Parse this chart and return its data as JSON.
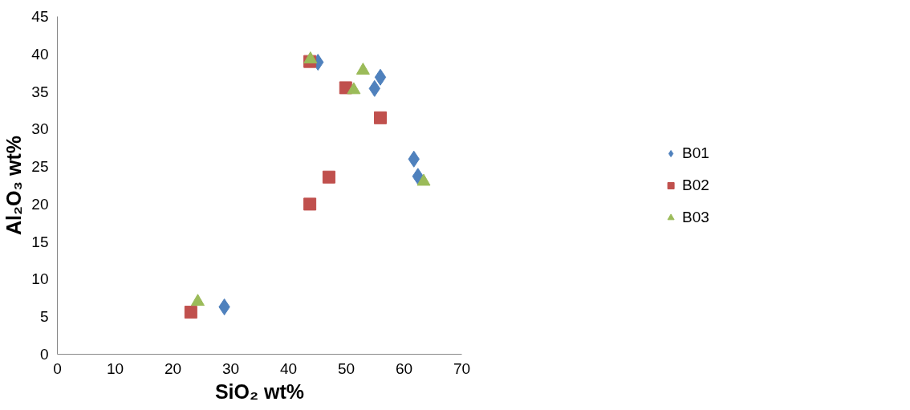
{
  "chart_data": {
    "type": "scatter",
    "xlabel": "SiO₂ wt%",
    "ylabel": "Al₂O₃ wt%",
    "xlim": [
      0,
      70
    ],
    "xticks": [
      0,
      10,
      20,
      30,
      40,
      50,
      60,
      70
    ],
    "ylim": [
      0,
      45
    ],
    "yticks": [
      0,
      5,
      10,
      15,
      20,
      25,
      30,
      35,
      40,
      45
    ],
    "grid": false,
    "legend": "right",
    "series": [
      {
        "name": "B01",
        "color": "#4f81bd",
        "marker": "diamond",
        "x": [
          28.9,
          45.1,
          54.9,
          55.9,
          61.7,
          62.4
        ],
        "values": [
          6.3,
          38.9,
          35.4,
          36.9,
          26.0,
          23.7
        ]
      },
      {
        "name": "B02",
        "color": "#c0504d",
        "marker": "square",
        "x": [
          23.1,
          43.7,
          43.7,
          47.0,
          49.9,
          55.9
        ],
        "values": [
          5.6,
          39.0,
          20.0,
          23.6,
          35.5,
          31.5
        ]
      },
      {
        "name": "B03",
        "color": "#9bbb59",
        "marker": "triangle",
        "x": [
          24.3,
          43.8,
          51.3,
          52.9,
          63.4
        ],
        "values": [
          7.0,
          39.3,
          35.2,
          37.8,
          23.0
        ]
      }
    ]
  }
}
